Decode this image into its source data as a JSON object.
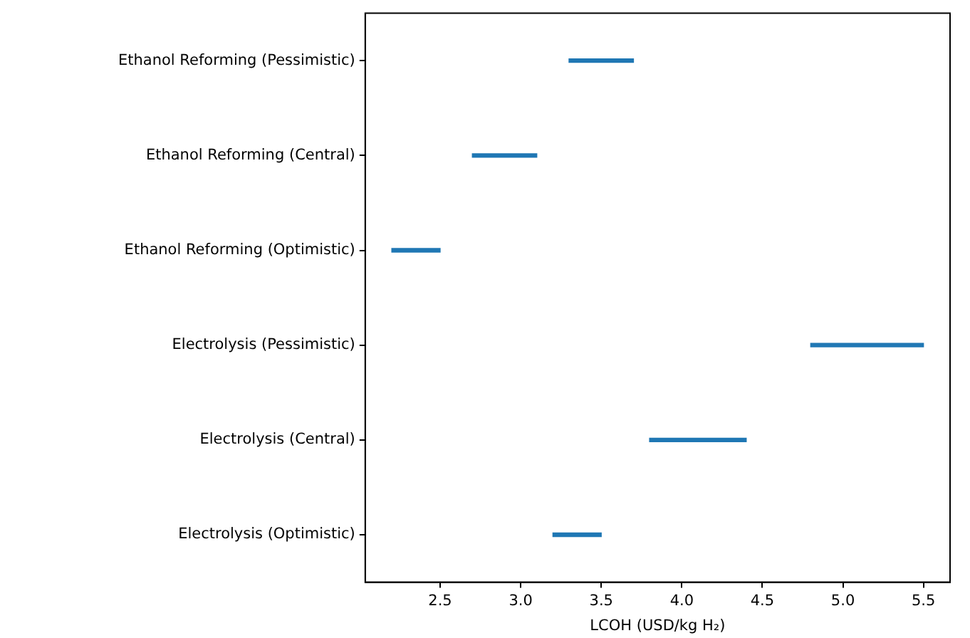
{
  "chart_data": {
    "type": "bar",
    "orientation": "horizontal",
    "xlabel": "LCOH (USD/kg H₂)",
    "categories": [
      "Ethanol Reforming (Pessimistic)",
      "Ethanol Reforming (Central)",
      "Ethanol Reforming (Optimistic)",
      "Electrolysis (Pessimistic)",
      "Electrolysis (Central)",
      "Electrolysis (Optimistic)"
    ],
    "base": [
      3.3,
      2.7,
      2.2,
      4.8,
      3.8,
      3.2
    ],
    "values": [
      0.4,
      0.4,
      0.3,
      0.7,
      0.6,
      0.3
    ],
    "color": "#1f77b4",
    "xlim": [
      2.035,
      5.665
    ],
    "xticks": [
      2.5,
      {
        "value": 3,
        "label": "3.0"
      },
      3.5,
      {
        "value": 4,
        "label": "4.0"
      },
      4.5,
      {
        "value": 5,
        "label": "5.0"
      },
      5.5
    ],
    "grid": false,
    "legend": false
  }
}
